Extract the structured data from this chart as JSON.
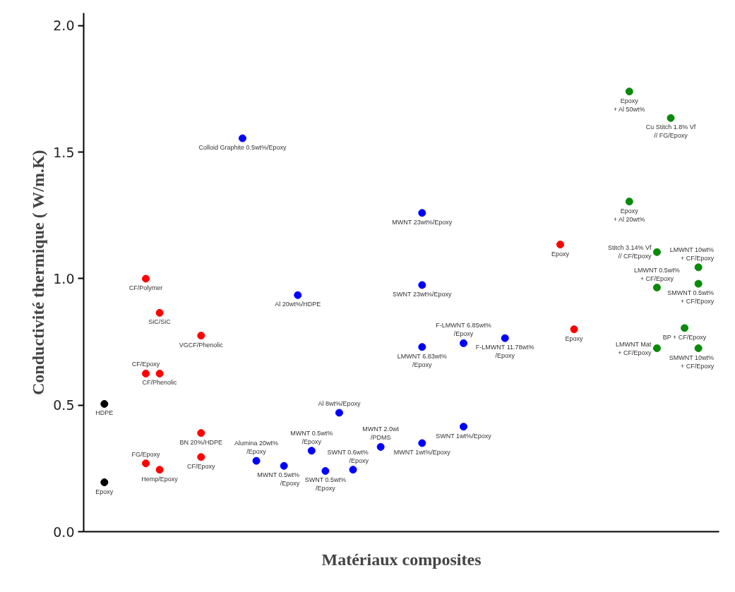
{
  "chart_data": {
    "type": "scatter",
    "xlabel": "Matériaux composites",
    "ylabel": "Conductivité thermique ( W/m.K)",
    "categories": [
      null,
      null,
      null,
      null,
      null,
      null,
      null,
      null,
      null,
      null,
      null,
      null,
      null,
      null,
      null,
      null,
      null,
      null,
      null,
      null,
      null,
      null,
      null,
      null,
      null,
      null,
      null,
      null,
      null,
      null,
      null,
      null,
      null,
      null,
      null,
      null,
      null,
      null,
      null,
      null,
      null,
      null,
      null,
      null,
      null,
      null
    ],
    "ylim": [
      0,
      2.05
    ],
    "yticks": [
      {
        "value": 0,
        "label": "0.0"
      },
      {
        "value": 0.5,
        "label": "0.5"
      },
      {
        "value": 1,
        "label": "1.0"
      },
      {
        "value": 1.5,
        "label": "1.5"
      },
      {
        "value": 2,
        "label": "2.0"
      }
    ],
    "tick_labels": "y",
    "grid": false,
    "marker": "circle",
    "series": [
      {
        "color": "#000000",
        "values": [
          null,
          0.195,
          null,
          null,
          null,
          null,
          null,
          null,
          null,
          null,
          null,
          null,
          null,
          null,
          null,
          null,
          null,
          null,
          null,
          null,
          null,
          null,
          null,
          null,
          null,
          null,
          null,
          null,
          null,
          null,
          null,
          null,
          null,
          null,
          null,
          null,
          null,
          null,
          null,
          null,
          null,
          null,
          null,
          null,
          null,
          null
        ],
        "value_labels": [
          null,
          "Epoxy",
          null,
          null,
          null,
          null,
          null,
          null,
          null,
          null,
          null,
          null,
          null,
          null,
          null,
          null,
          null,
          null,
          null,
          null,
          null,
          null,
          null,
          null,
          null,
          null,
          null,
          null,
          null,
          null,
          null,
          null,
          null,
          null,
          null,
          null,
          null,
          null,
          null,
          null,
          null,
          null,
          null,
          null,
          null,
          null
        ]
      },
      {
        "color": "#000000",
        "values": [
          null,
          0.505,
          null,
          null,
          null,
          null,
          null,
          null,
          null,
          null,
          null,
          null,
          null,
          null,
          null,
          null,
          null,
          null,
          null,
          null,
          null,
          null,
          null,
          null,
          null,
          null,
          null,
          null,
          null,
          null,
          null,
          null,
          null,
          null,
          null,
          null,
          null,
          null,
          null,
          null,
          null,
          null,
          null,
          null,
          null,
          null
        ],
        "value_labels": [
          null,
          "HDPE",
          null,
          null,
          null,
          null,
          null,
          null,
          null,
          null,
          null,
          null,
          null,
          null,
          null,
          null,
          null,
          null,
          null,
          null,
          null,
          null,
          null,
          null,
          null,
          null,
          null,
          null,
          null,
          null,
          null,
          null,
          null,
          null,
          null,
          null,
          null,
          null,
          null,
          null,
          null,
          null,
          null,
          null,
          null,
          null
        ]
      },
      {
        "color": "#ff0000",
        "values": [
          null,
          null,
          null,
          null,
          1.0,
          0.865,
          null,
          null,
          0.775,
          null,
          null,
          null,
          null,
          null,
          null,
          null,
          null,
          null,
          null,
          null,
          null,
          null,
          null,
          null,
          null,
          null,
          null,
          null,
          null,
          null,
          null,
          null,
          null,
          null,
          1.135,
          0.8,
          null,
          null,
          null,
          null,
          null,
          null,
          null,
          null,
          null,
          null
        ],
        "value_labels": [
          null,
          null,
          null,
          null,
          "CF/Polymer",
          "SiC/SiC",
          null,
          null,
          "VGCF/Phenolic",
          null,
          null,
          null,
          null,
          null,
          null,
          null,
          null,
          null,
          null,
          null,
          null,
          null,
          null,
          null,
          null,
          null,
          null,
          null,
          null,
          null,
          null,
          null,
          null,
          null,
          "Epoxy",
          "Epoxy",
          null,
          null,
          null,
          null,
          null,
          null,
          null,
          null,
          null,
          null
        ]
      },
      {
        "color": "#ff0000",
        "values": [
          null,
          null,
          null,
          null,
          0.625,
          0.625,
          null,
          null,
          0.39,
          null,
          null,
          null,
          null,
          null,
          null,
          null,
          null,
          null,
          null,
          null,
          null,
          null,
          null,
          null,
          null,
          null,
          null,
          null,
          null,
          null,
          null,
          null,
          null,
          null,
          null,
          null,
          null,
          null,
          null,
          null,
          null,
          null,
          null,
          null,
          null,
          null
        ],
        "value_labels": [
          null,
          null,
          null,
          null,
          "CF/Epoxy",
          "CF/Phenolic",
          null,
          null,
          "BN 20%/HDPE",
          null,
          null,
          null,
          null,
          null,
          null,
          null,
          null,
          null,
          null,
          null,
          null,
          null,
          null,
          null,
          null,
          null,
          null,
          null,
          null,
          null,
          null,
          null,
          null,
          null,
          null,
          null,
          null,
          null,
          null,
          null,
          null,
          null,
          null,
          null,
          null,
          null
        ]
      },
      {
        "color": "#ff0000",
        "values": [
          null,
          null,
          null,
          null,
          0.27,
          0.245,
          null,
          null,
          0.295,
          null,
          null,
          null,
          null,
          null,
          null,
          null,
          null,
          null,
          null,
          null,
          null,
          null,
          null,
          null,
          null,
          null,
          null,
          null,
          null,
          null,
          null,
          null,
          null,
          null,
          null,
          null,
          null,
          null,
          null,
          null,
          null,
          null,
          null,
          null,
          null,
          null
        ],
        "value_labels": [
          null,
          null,
          null,
          null,
          "FG/Epoxy",
          "Hemp/Epoxy",
          null,
          null,
          "CF/Epoxy",
          null,
          null,
          null,
          null,
          null,
          null,
          null,
          null,
          null,
          null,
          null,
          null,
          null,
          null,
          null,
          null,
          null,
          null,
          null,
          null,
          null,
          null,
          null,
          null,
          null,
          null,
          null,
          null,
          null,
          null,
          null,
          null,
          null,
          null,
          null,
          null,
          null
        ]
      },
      {
        "color": "#0000ff",
        "values": [
          null,
          null,
          null,
          null,
          null,
          null,
          null,
          null,
          null,
          null,
          null,
          1.555,
          0.28,
          null,
          0.26,
          0.935,
          0.32,
          0.24,
          0.47,
          0.245,
          null,
          0.335,
          null,
          null,
          1.26,
          null,
          null,
          0.745,
          null,
          null,
          0.765,
          null,
          null,
          null,
          null,
          null,
          null,
          null,
          null,
          null,
          null,
          null,
          null,
          null,
          null,
          null
        ],
        "value_labels": [
          null,
          null,
          null,
          null,
          null,
          null,
          null,
          null,
          null,
          null,
          null,
          "Colloid Graphite 0.5wt%/Epoxy",
          "Alumina 20wt%\n/Epoxy",
          null,
          "MWNT 0.5wt%\n/Epoxy",
          "Al 20wt%/HDPE",
          "MWNT 0.5wt%\n/Epoxy",
          "SWNT 0.5wt%\n/Epoxy",
          "Al 8wt%/Epoxy",
          "SWNT 0.6wt%\n/Epoxy",
          null,
          "MWNT 2.0wt\n/PDMS",
          null,
          null,
          "MWNT 23wt%/Epoxy",
          null,
          null,
          "F-LMWNT 6.85wt%\n/Epoxy",
          null,
          null,
          "F-LMWNT 11.78wt%\n/Epoxy",
          null,
          null,
          null,
          null,
          null,
          null,
          null,
          null,
          null,
          null,
          null,
          null,
          null,
          null,
          null
        ]
      },
      {
        "color": "#0000ff",
        "values": [
          null,
          null,
          null,
          null,
          null,
          null,
          null,
          null,
          null,
          null,
          null,
          null,
          null,
          null,
          null,
          null,
          null,
          null,
          null,
          null,
          null,
          null,
          null,
          null,
          0.975,
          null,
          null,
          0.415,
          null,
          null,
          null,
          null,
          null,
          null,
          null,
          null,
          null,
          null,
          null,
          null,
          null,
          null,
          null,
          null,
          null,
          null
        ],
        "value_labels": [
          null,
          null,
          null,
          null,
          null,
          null,
          null,
          null,
          null,
          null,
          null,
          null,
          null,
          null,
          null,
          null,
          null,
          null,
          null,
          null,
          null,
          null,
          null,
          null,
          "SWNT 23wt%/Epoxy",
          null,
          null,
          "SWNT 1wt%/Epoxy",
          null,
          null,
          null,
          null,
          null,
          null,
          null,
          null,
          null,
          null,
          null,
          null,
          null,
          null,
          null,
          null,
          null,
          null
        ]
      },
      {
        "color": "#0000ff",
        "values": [
          null,
          null,
          null,
          null,
          null,
          null,
          null,
          null,
          null,
          null,
          null,
          null,
          null,
          null,
          null,
          null,
          null,
          null,
          null,
          null,
          null,
          null,
          null,
          null,
          0.73,
          null,
          null,
          null,
          null,
          null,
          null,
          null,
          null,
          null,
          null,
          null,
          null,
          null,
          null,
          null,
          null,
          null,
          null,
          null,
          null,
          null
        ],
        "value_labels": [
          null,
          null,
          null,
          null,
          null,
          null,
          null,
          null,
          null,
          null,
          null,
          null,
          null,
          null,
          null,
          null,
          null,
          null,
          null,
          null,
          null,
          null,
          null,
          null,
          "LMWNT 6.83wt%\n/Epoxy",
          null,
          null,
          null,
          null,
          null,
          null,
          null,
          null,
          null,
          null,
          null,
          null,
          null,
          null,
          null,
          null,
          null,
          null,
          null,
          null,
          null
        ]
      },
      {
        "color": "#0000ff",
        "values": [
          null,
          null,
          null,
          null,
          null,
          null,
          null,
          null,
          null,
          null,
          null,
          null,
          null,
          null,
          null,
          null,
          null,
          null,
          null,
          null,
          null,
          null,
          null,
          null,
          0.35,
          null,
          null,
          null,
          null,
          null,
          null,
          null,
          null,
          null,
          null,
          null,
          null,
          null,
          null,
          null,
          null,
          null,
          null,
          null,
          null,
          null
        ],
        "value_labels": [
          null,
          null,
          null,
          null,
          null,
          null,
          null,
          null,
          null,
          null,
          null,
          null,
          null,
          null,
          null,
          null,
          null,
          null,
          null,
          null,
          null,
          null,
          null,
          null,
          "MWNT 1wt%/Epoxy",
          null,
          null,
          null,
          null,
          null,
          null,
          null,
          null,
          null,
          null,
          null,
          null,
          null,
          null,
          null,
          null,
          null,
          null,
          null,
          null,
          null
        ]
      },
      {
        "color": "#0a8a0a",
        "values": [
          null,
          null,
          null,
          null,
          null,
          null,
          null,
          null,
          null,
          null,
          null,
          null,
          null,
          null,
          null,
          null,
          null,
          null,
          null,
          null,
          null,
          null,
          null,
          null,
          null,
          null,
          null,
          null,
          null,
          null,
          null,
          null,
          null,
          null,
          null,
          null,
          null,
          null,
          null,
          1.74,
          null,
          1.105,
          1.635,
          0.805,
          1.045,
          null
        ],
        "value_labels": [
          null,
          null,
          null,
          null,
          null,
          null,
          null,
          null,
          null,
          null,
          null,
          null,
          null,
          null,
          null,
          null,
          null,
          null,
          null,
          null,
          null,
          null,
          null,
          null,
          null,
          null,
          null,
          null,
          null,
          null,
          null,
          null,
          null,
          null,
          null,
          null,
          null,
          null,
          null,
          "Epoxy\n+ Al 50wt%",
          null,
          "Stitch 3.14% Vf\n// CF/Epoxy",
          "Cu Stitch 1.8% Vf\n// FG/Epoxy",
          "BP + CF/Epoxy",
          "LMWNT 10wt%\n+ CF/Epoxy",
          null
        ]
      },
      {
        "color": "#0a8a0a",
        "values": [
          null,
          null,
          null,
          null,
          null,
          null,
          null,
          null,
          null,
          null,
          null,
          null,
          null,
          null,
          null,
          null,
          null,
          null,
          null,
          null,
          null,
          null,
          null,
          null,
          null,
          null,
          null,
          null,
          null,
          null,
          null,
          null,
          null,
          null,
          null,
          null,
          null,
          null,
          null,
          1.305,
          null,
          0.965,
          null,
          null,
          0.98,
          null
        ],
        "value_labels": [
          null,
          null,
          null,
          null,
          null,
          null,
          null,
          null,
          null,
          null,
          null,
          null,
          null,
          null,
          null,
          null,
          null,
          null,
          null,
          null,
          null,
          null,
          null,
          null,
          null,
          null,
          null,
          null,
          null,
          null,
          null,
          null,
          null,
          null,
          null,
          null,
          null,
          null,
          null,
          "Epoxy\n+ Al 20wt%",
          null,
          "LMWNT 0.5wt%\n+ CF/Epoxy",
          null,
          null,
          "SMWNT 0.5wt%\n+ CF/Epoxy",
          null
        ]
      },
      {
        "color": "#0a8a0a",
        "values": [
          null,
          null,
          null,
          null,
          null,
          null,
          null,
          null,
          null,
          null,
          null,
          null,
          null,
          null,
          null,
          null,
          null,
          null,
          null,
          null,
          null,
          null,
          null,
          null,
          null,
          null,
          null,
          null,
          null,
          null,
          null,
          null,
          null,
          null,
          null,
          null,
          null,
          null,
          null,
          null,
          null,
          0.725,
          null,
          null,
          0.725,
          null
        ],
        "value_labels": [
          null,
          null,
          null,
          null,
          null,
          null,
          null,
          null,
          null,
          null,
          null,
          null,
          null,
          null,
          null,
          null,
          null,
          null,
          null,
          null,
          null,
          null,
          null,
          null,
          null,
          null,
          null,
          null,
          null,
          null,
          null,
          null,
          null,
          null,
          null,
          null,
          null,
          null,
          null,
          null,
          null,
          "LMWNT Mat\n+ CF/Epoxy",
          null,
          null,
          "SMWNT 10wt%\n+ CF/Epoxy",
          null
        ]
      }
    ]
  }
}
